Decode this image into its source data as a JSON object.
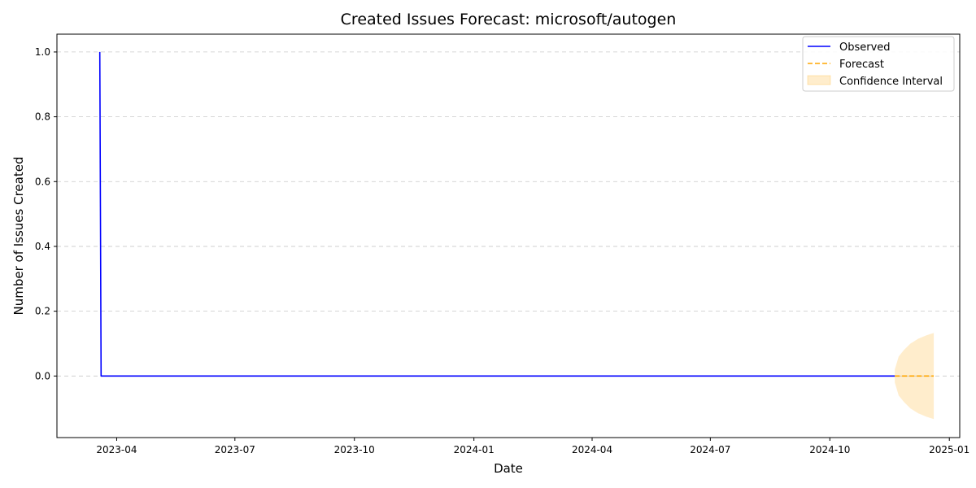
{
  "chart_data": {
    "type": "line",
    "title": "Created Issues Forecast: microsoft/autogen",
    "xlabel": "Date",
    "ylabel": "Number of Issues Created",
    "x_range": [
      "2023-02-14",
      "2025-01-09"
    ],
    "ylim": [
      -0.19,
      1.055
    ],
    "x_ticks": [
      "2023-04-01",
      "2023-07-01",
      "2023-10-01",
      "2024-01-01",
      "2024-04-01",
      "2024-07-01",
      "2024-10-01",
      "2025-01-01"
    ],
    "x_tick_labels": [
      "2023-04",
      "2023-07",
      "2023-10",
      "2024-01",
      "2024-04",
      "2024-07",
      "2024-10",
      "2025-01"
    ],
    "y_ticks": [
      0.0,
      0.2,
      0.4,
      0.6,
      0.8,
      1.0
    ],
    "y_tick_labels": [
      "0.0",
      "0.2",
      "0.4",
      "0.6",
      "0.8",
      "1.0"
    ],
    "grid": "horizontal dashed",
    "legend_position": "top-right",
    "series": [
      {
        "name": "Observed",
        "style": "solid",
        "color": "#0000ff",
        "points": [
          {
            "x": "2023-03-19",
            "y": 1
          },
          {
            "x": "2023-03-20",
            "y": 0
          },
          {
            "x": "2024-11-20",
            "y": 0
          }
        ]
      },
      {
        "name": "Forecast",
        "style": "dashed",
        "color": "#ffa500",
        "points": [
          {
            "x": "2024-11-20",
            "y": 0
          },
          {
            "x": "2024-12-20",
            "y": 0
          }
        ]
      }
    ],
    "confidence_interval": {
      "name": "Confidence Interval",
      "color": "#ffa500",
      "points": [
        {
          "x": "2024-11-20",
          "lower": -0.02,
          "upper": 0.02
        },
        {
          "x": "2024-11-23",
          "lower": -0.06,
          "upper": 0.06
        },
        {
          "x": "2024-11-27",
          "lower": -0.08,
          "upper": 0.08
        },
        {
          "x": "2024-12-02",
          "lower": -0.1,
          "upper": 0.1
        },
        {
          "x": "2024-12-08",
          "lower": -0.115,
          "upper": 0.115
        },
        {
          "x": "2024-12-14",
          "lower": -0.125,
          "upper": 0.125
        },
        {
          "x": "2024-12-20",
          "lower": -0.133,
          "upper": 0.133
        }
      ]
    }
  }
}
